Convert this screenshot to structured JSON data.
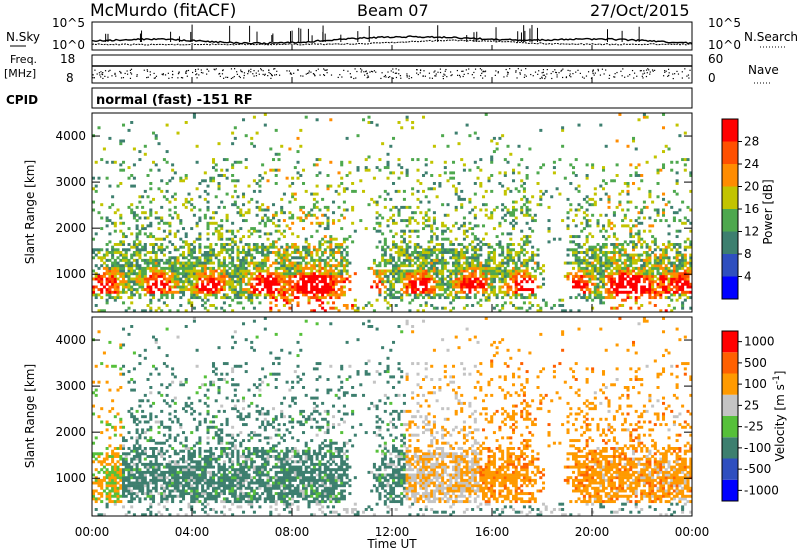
{
  "header": {
    "station": "McMurdo (fitACF)",
    "beam": "Beam 07",
    "date": "27/Oct/2015"
  },
  "noise_panel": {
    "left_label": "N.Sky",
    "right_label": "N.Search",
    "left_ticks": [
      "10^5",
      "10^0"
    ],
    "right_ticks": [
      "10^5",
      "10^0"
    ]
  },
  "freq_panel": {
    "left_label_1": "Freq.",
    "left_label_2": "[MHz]",
    "right_label": "Nave",
    "left_ticks": [
      "18",
      "8"
    ],
    "right_ticks": [
      "60",
      "0"
    ]
  },
  "cpid": {
    "label": "CPID",
    "mode": "normal (fast) -151 RF"
  },
  "colors": {
    "power": [
      "#0000ff",
      "#2f4fbf",
      "#3d7f6f",
      "#4ea84e",
      "#c2c400",
      "#ff8c00",
      "#ff5000",
      "#ff0000"
    ],
    "velocity": [
      "#0000ff",
      "#2f4fbf",
      "#3d7f6f",
      "#56c03a",
      "#c4c4c4",
      "#ff9a00",
      "#ff6000",
      "#ff0000"
    ]
  },
  "chart_data": [
    {
      "type": "heatmap",
      "title": "Power",
      "xlabel": "",
      "ylabel": "Slant Range [km]",
      "xlim": [
        0,
        24
      ],
      "ylim": [
        180,
        4500
      ],
      "y_ticks": [
        1000,
        2000,
        3000,
        4000
      ],
      "colorbar_label": "Power [dB]",
      "colorbar_ticks": [
        "4",
        "8",
        "12",
        "16",
        "20",
        "24",
        "28"
      ],
      "colorbar_range": [
        0,
        32
      ]
    },
    {
      "type": "heatmap",
      "title": "Velocity",
      "xlabel": "Time UT",
      "ylabel": "Slant Range [km]",
      "xlim": [
        0,
        24
      ],
      "ylim": [
        180,
        4500
      ],
      "x_ticks": [
        "00:00",
        "04:00",
        "08:00",
        "12:00",
        "16:00",
        "20:00",
        "00:00"
      ],
      "y_ticks": [
        1000,
        2000,
        3000,
        4000
      ],
      "colorbar_label": "Velocity [m s^-1]",
      "colorbar_ticks": [
        "1000",
        "500",
        "100",
        "25",
        "-25",
        "-100",
        "-500",
        "-1000"
      ]
    }
  ]
}
